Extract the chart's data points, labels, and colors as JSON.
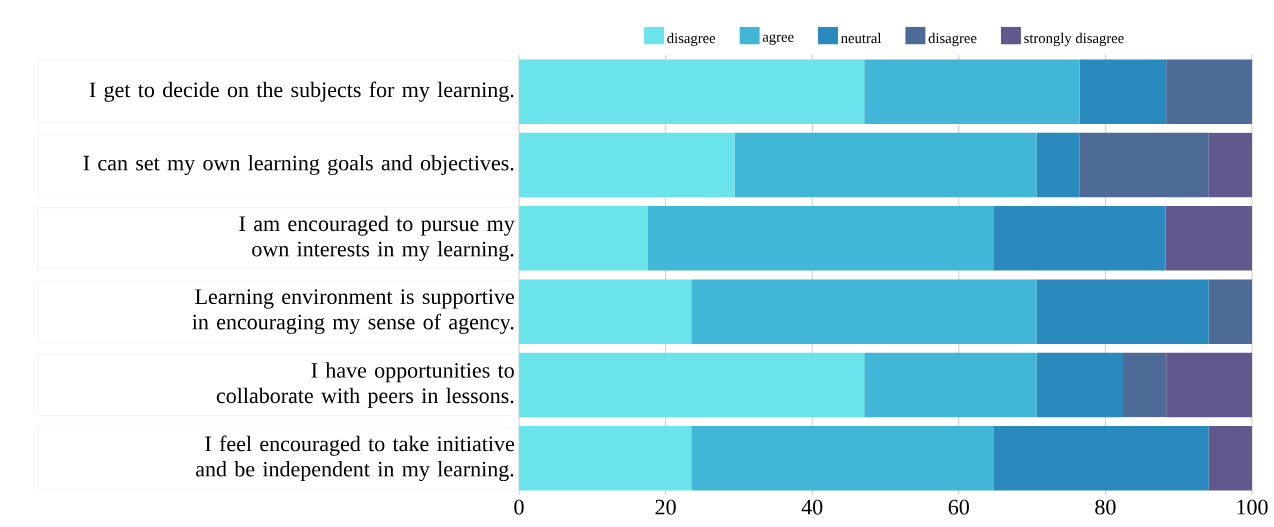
{
  "chart_data": {
    "type": "bar",
    "orientation": "horizontal",
    "stacked": true,
    "categories": [
      "I get to decide on the subjects for my learning.",
      "I can set my own learning goals and objectives.",
      "I am encouraged to pursue my own interests in my learning.",
      "Learning environment is supportive in encouraging my sense of agency.",
      "I have opportunities to collaborate with peers in lessons.",
      "I feel encouraged to take initiative and be independent in my learning."
    ],
    "series": [
      {
        "name": "disagree",
        "color": "#6ae4ea",
        "values": [
          47.1,
          29.4,
          17.6,
          23.5,
          47.1,
          23.5
        ]
      },
      {
        "name": "agree",
        "color": "#42b6d6",
        "values": [
          29.4,
          41.2,
          47.1,
          47.1,
          23.5,
          41.2
        ]
      },
      {
        "name": "neutral",
        "color": "#2b8abd",
        "values": [
          11.8,
          5.9,
          23.5,
          23.5,
          11.8,
          29.4
        ]
      },
      {
        "name": "disagree",
        "color": "#4e6b98",
        "values": [
          11.8,
          17.6,
          0,
          5.9,
          5.9,
          0
        ]
      },
      {
        "name": "strongly disagree",
        "color": "#63588e",
        "values": [
          0,
          5.9,
          11.8,
          0,
          11.8,
          5.9
        ]
      }
    ],
    "xlim": [
      0,
      100
    ],
    "xticks": [
      0,
      20,
      40,
      60,
      80,
      100
    ],
    "grid": "x",
    "legend": "top"
  }
}
